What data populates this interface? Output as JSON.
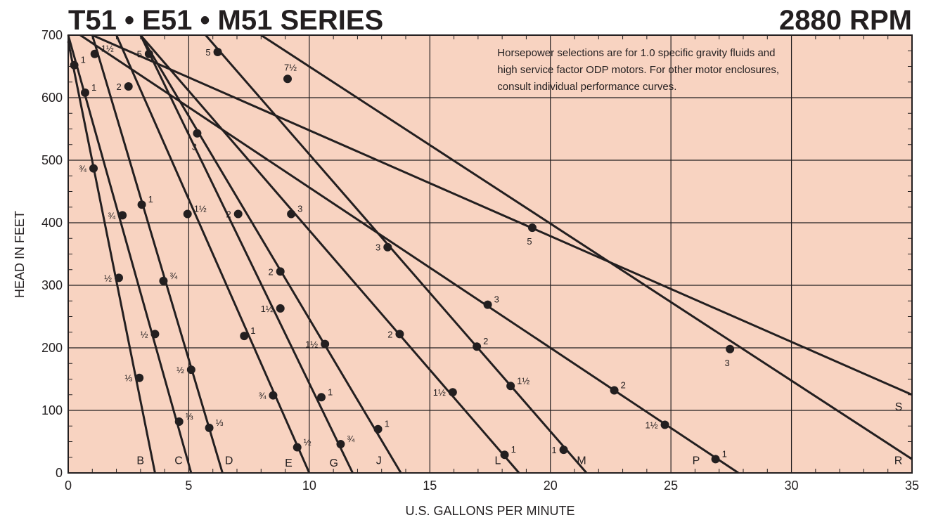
{
  "chart_data": {
    "type": "line",
    "title": "T51 • E51 • M51 SERIES",
    "subtitle": "2880 RPM",
    "xlabel": "U.S. GALLONS PER MINUTE",
    "ylabel": "HEAD IN FEET",
    "xlim": [
      0,
      35
    ],
    "ylim": [
      0,
      700
    ],
    "x_ticks": [
      "0",
      "5",
      "10",
      "15",
      "20",
      "25",
      "30",
      "35"
    ],
    "y_ticks": [
      "0",
      "100",
      "200",
      "300",
      "400",
      "500",
      "600",
      "700"
    ],
    "grid": true,
    "annotation_lines": [
      "Horsepower selections are for 1.0 specific gravity fluids and",
      "high service factor ODP motors. For other motor enclosures,",
      "consult individual performance curves."
    ],
    "colors": {
      "plot_background": "#f8d3c1",
      "line": "#231f20",
      "grid": "#231f20"
    },
    "series": [
      {
        "name": "B",
        "x": [
          0,
          3.6
        ],
        "y": [
          690,
          0
        ],
        "points": [
          {
            "x": 0.25,
            "y": 652,
            "label": "1"
          },
          {
            "x": 1.05,
            "y": 487,
            "label": "¾"
          },
          {
            "x": 2.1,
            "y": 312,
            "label": "½"
          },
          {
            "x": 2.95,
            "y": 152,
            "label": "⅓"
          }
        ]
      },
      {
        "name": "C",
        "x": [
          0,
          5.1
        ],
        "y": [
          700,
          0
        ],
        "points": [
          {
            "x": 0.7,
            "y": 608,
            "label": "1"
          },
          {
            "x": 2.25,
            "y": 412,
            "label": "¾"
          },
          {
            "x": 3.6,
            "y": 222,
            "label": "½"
          },
          {
            "x": 4.6,
            "y": 82,
            "label": "⅓"
          }
        ]
      },
      {
        "name": "D",
        "x": [
          1.0,
          6.4
        ],
        "y": [
          700,
          0
        ],
        "points": [
          {
            "x": 1.1,
            "y": 670,
            "label": "1½"
          },
          {
            "x": 3.05,
            "y": 429,
            "label": "1"
          },
          {
            "x": 3.95,
            "y": 307,
            "label": "¾"
          },
          {
            "x": 5.1,
            "y": 165,
            "label": "½"
          },
          {
            "x": 5.85,
            "y": 72,
            "label": "⅓"
          }
        ]
      },
      {
        "name": "E",
        "x": [
          2.0,
          10.0
        ],
        "y": [
          700,
          0
        ],
        "points": [
          {
            "x": 2.5,
            "y": 618,
            "label": "2"
          },
          {
            "x": 4.95,
            "y": 414,
            "label": "1½"
          },
          {
            "x": 7.3,
            "y": 219,
            "label": "1"
          },
          {
            "x": 8.5,
            "y": 124,
            "label": "¾"
          },
          {
            "x": 9.5,
            "y": 41,
            "label": "½"
          }
        ]
      },
      {
        "name": "G",
        "x": [
          3.0,
          11.8
        ],
        "y": [
          700,
          0
        ],
        "points": [
          {
            "x": 3.35,
            "y": 670,
            "label": "5"
          },
          {
            "x": 5.35,
            "y": 543,
            "label": "3"
          },
          {
            "x": 8.8,
            "y": 322,
            "label": "2"
          },
          {
            "x": 10.5,
            "y": 121,
            "label": "1"
          },
          {
            "x": 11.3,
            "y": 46,
            "label": "¾"
          }
        ]
      },
      {
        "name": "J",
        "x": [
          3.0,
          13.8
        ],
        "y": [
          700,
          0
        ],
        "points": [
          {
            "x": 7.05,
            "y": 414,
            "label": "2"
          },
          {
            "x": 8.8,
            "y": 263,
            "label": "1½"
          },
          {
            "x": 10.65,
            "y": 206,
            "label": "1½"
          },
          {
            "x": 12.85,
            "y": 70,
            "label": "1"
          }
        ]
      },
      {
        "name": "L",
        "x": [
          3.0,
          18.7
        ],
        "y": [
          700,
          0
        ],
        "points": [
          {
            "x": 9.25,
            "y": 414,
            "label": "3"
          },
          {
            "x": 13.75,
            "y": 222,
            "label": "2"
          },
          {
            "x": 15.95,
            "y": 129,
            "label": "1½"
          },
          {
            "x": 18.1,
            "y": 29,
            "label": "1"
          }
        ]
      },
      {
        "name": "M",
        "x": [
          5.7,
          21.5
        ],
        "y": [
          700,
          0
        ],
        "points": [
          {
            "x": 6.2,
            "y": 673,
            "label": "5"
          },
          {
            "x": 13.25,
            "y": 361,
            "label": "3"
          },
          {
            "x": 16.95,
            "y": 202,
            "label": "2"
          },
          {
            "x": 18.35,
            "y": 139,
            "label": "1½"
          },
          {
            "x": 20.55,
            "y": 37,
            "label": "1"
          }
        ]
      },
      {
        "name": "P",
        "x": [
          0.5,
          27.8
        ],
        "y": [
          700,
          0
        ],
        "points": [
          {
            "x": 17.4,
            "y": 269,
            "label": "3"
          },
          {
            "x": 22.65,
            "y": 132,
            "label": "2"
          },
          {
            "x": 24.75,
            "y": 77,
            "label": "1½"
          },
          {
            "x": 26.85,
            "y": 22,
            "label": "1"
          }
        ]
      },
      {
        "name": "R",
        "x": [
          8.0,
          35.0
        ],
        "y": [
          700,
          22
        ],
        "points": [
          {
            "x": 9.1,
            "y": 630,
            "label": "7½"
          },
          {
            "x": 19.25,
            "y": 392,
            "label": "5"
          },
          {
            "x": 27.45,
            "y": 198,
            "label": "3"
          }
        ]
      },
      {
        "name": "S",
        "x": [
          1.0,
          35.0
        ],
        "y": [
          700,
          125
        ],
        "points": []
      }
    ]
  }
}
